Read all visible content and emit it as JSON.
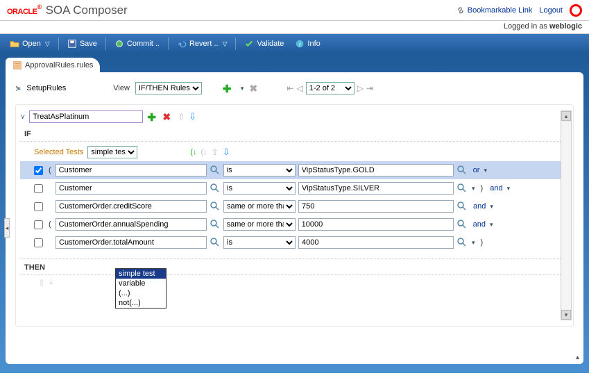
{
  "header": {
    "logo_text": "ORACLE",
    "app_title": "SOA Composer",
    "bookmark": "Bookmarkable Link",
    "logout": "Logout",
    "logged_prefix": "Logged in as ",
    "user": "weblogic"
  },
  "toolbar": {
    "open": "Open",
    "save": "Save",
    "commit": "Commit ..",
    "revert": "Revert ..",
    "validate": "Validate",
    "info": "Info"
  },
  "tab": {
    "label": "ApprovalRules.rules"
  },
  "ruleset": {
    "name": "SetupRules",
    "view_label": "View",
    "view_value": "IF/THEN Rules",
    "pager": "1-2 of 2"
  },
  "rule": {
    "name": "TreatAsPlatinum",
    "if_label": "IF",
    "then_label": "THEN",
    "selected_tests_label": "Selected Tests",
    "test_type": "simple test",
    "dropdown_options": [
      "simple test",
      "variable",
      "(...)",
      "not(...)"
    ]
  },
  "conditions": [
    {
      "checked": true,
      "paren_open": "(",
      "lhs": "Customer",
      "op": "is",
      "rhs": "VipStatusType.GOLD",
      "trail": "or",
      "trail_drop": true
    },
    {
      "checked": false,
      "lhs": "Customer",
      "op": "is",
      "rhs": "VipStatusType.SILVER",
      "trail": ")  and",
      "trail_drop": true,
      "trail_paren": true
    },
    {
      "checked": false,
      "lhs": "CustomerOrder.creditScore",
      "op": "same or more than",
      "rhs": "750",
      "trail": "and",
      "trail_drop": true
    },
    {
      "checked": false,
      "paren_open": "(",
      "lhs": "CustomerOrder.annualSpending",
      "op": "same or more than",
      "rhs": "10000",
      "trail": "and",
      "trail_drop": true
    },
    {
      "checked": false,
      "lhs": "CustomerOrder.totalAmount",
      "op": "is",
      "rhs": "4000",
      "trail": ")",
      "trail_drop": true,
      "trail_paren": true
    }
  ],
  "colors": {
    "toolbar_top": "#3a77bd",
    "toolbar_bottom": "#1f5a99",
    "workspace_bottom": "#4a8fd0",
    "row_selected": "#c6d6f0",
    "link": "#003399",
    "tests_label": "#c77a00"
  }
}
